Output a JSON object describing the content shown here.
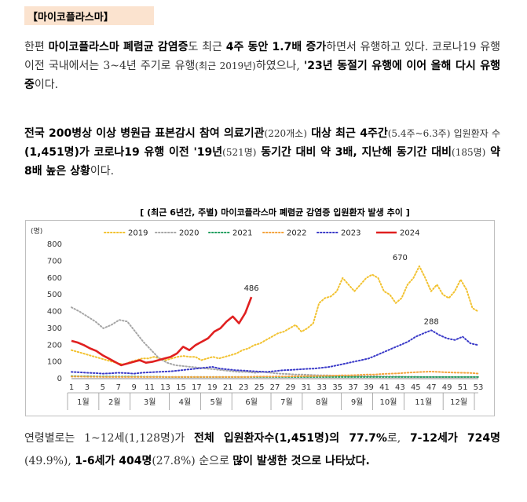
{
  "section_title": "【마이코플라스마】",
  "p1": {
    "s1": "한편 ",
    "b1": "마이코플라스마 폐렴균 감염증",
    "s2": "도 최근 ",
    "b2": "4주 동안 1.7배 증가",
    "s3": "하면서 유행하고 있다. 코로나19 유행 이전 국내에서는 3~4년 주기로 유행",
    "s4": "(최근 2019년)",
    "s5": "하였으나, ",
    "b3": "'23년 동절기 유행에 이어 올해 다시 유행 중",
    "s6": "이다."
  },
  "p2": {
    "b1": "전국 200병상 이상 병원급 표본감시 참여 의료기관",
    "s1": "(220개소)",
    "b2": " 대상 최근 4주간",
    "s2": "(5.4주~6.3주) 입원환자 수",
    "b3": "(1,451명)",
    "b4": "가 코로나19 유행 이전 '19년",
    "s3": "(521명)",
    "b5": " 동기간 대비 약 3배, 지난해 동기간 대비",
    "s4": "(185명)",
    "b6": " 약 8배 높은 상황",
    "s5": "이다."
  },
  "chart_caption": "[ (최근 6년간, 주별) 마이코플라스마 폐렴균 감염증 입원환자 발생 추이 ]",
  "p3": {
    "s1": "연령별로는 1~12세(1,128명)가 ",
    "b1": "전체 입원환자수(1,451명)의 77.7%",
    "s2": "로, ",
    "b2": "7-12세가 724명",
    "s3": "(49.9%), ",
    "b3": "1-6세가 404명",
    "s4": "(27.8%) 순으로 ",
    "b4": "많이 발생한 것으로 나타났다."
  },
  "chart_data": {
    "type": "line",
    "ylabel": "(명)",
    "ylim": [
      0,
      800
    ],
    "yticks": [
      0,
      100,
      200,
      300,
      400,
      500,
      600,
      700,
      800
    ],
    "xticks": [
      1,
      3,
      5,
      7,
      9,
      11,
      13,
      15,
      17,
      19,
      21,
      23,
      25,
      27,
      29,
      31,
      33,
      35,
      37,
      39,
      41,
      43,
      45,
      47,
      49,
      51,
      53
    ],
    "months": [
      "1월",
      "2월",
      "3월",
      "4월",
      "5월",
      "6월",
      "7월",
      "8월",
      "9월",
      "10월",
      "11월",
      "12월"
    ],
    "month_boundaries": [
      0,
      4,
      8,
      13,
      17,
      21,
      26,
      30,
      35,
      39,
      43,
      48,
      52
    ],
    "annotations": [
      {
        "label": "670",
        "x": 43,
        "y": 670
      },
      {
        "label": "288",
        "x": 47,
        "y": 288
      },
      {
        "label": "486",
        "x": 24,
        "y": 486
      }
    ],
    "series": [
      {
        "name": "2019",
        "color": "#f2c230",
        "style": "dotted",
        "values": [
          170,
          160,
          150,
          140,
          130,
          120,
          110,
          100,
          90,
          85,
          100,
          110,
          120,
          120,
          130,
          120,
          110,
          120,
          130,
          135,
          130,
          130,
          110,
          120,
          130,
          120,
          130,
          140,
          150,
          170,
          180,
          200,
          210,
          230,
          250,
          270,
          280,
          300,
          320,
          280,
          300,
          330,
          450,
          480,
          490,
          520,
          600,
          560,
          520,
          560,
          600,
          620,
          600,
          520,
          500,
          450,
          480,
          560,
          600,
          670,
          600,
          520,
          560,
          500,
          480,
          520,
          590,
          530,
          420,
          400
        ]
      },
      {
        "name": "2020",
        "color": "#a6a6a6",
        "style": "dotted",
        "values": [
          425,
          400,
          370,
          340,
          300,
          320,
          350,
          340,
          280,
          220,
          170,
          120,
          95,
          80,
          75,
          70,
          65,
          60,
          55,
          50,
          45,
          40,
          40,
          35,
          40,
          35,
          30,
          28,
          25,
          25,
          22,
          20,
          20,
          18,
          18,
          15,
          15,
          14,
          14,
          13,
          12,
          12,
          11,
          11,
          10,
          10,
          10,
          10,
          10,
          10,
          10,
          10
        ]
      },
      {
        "name": "2021",
        "color": "#1f9e5e",
        "style": "dotted",
        "values": [
          15,
          14,
          14,
          13,
          13,
          12,
          12,
          12,
          12,
          11,
          11,
          11,
          10,
          10,
          10,
          10,
          10,
          10,
          10,
          10,
          10,
          10,
          10,
          10,
          10,
          10,
          10,
          10,
          10,
          10,
          10,
          10,
          10,
          10,
          10,
          10,
          10,
          10,
          10,
          10,
          10,
          10,
          10,
          10,
          10,
          10,
          10,
          10,
          10,
          10,
          10,
          10
        ]
      },
      {
        "name": "2022",
        "color": "#f4a23a",
        "style": "dotted",
        "values": [
          12,
          12,
          11,
          11,
          10,
          10,
          10,
          10,
          10,
          10,
          10,
          10,
          10,
          10,
          10,
          10,
          10,
          10,
          10,
          10,
          10,
          10,
          10,
          12,
          12,
          12,
          13,
          13,
          14,
          15,
          15,
          16,
          17,
          18,
          20,
          20,
          22,
          25,
          25,
          28,
          30,
          32,
          35,
          38,
          40,
          42,
          40,
          38,
          36,
          35,
          34,
          30
        ]
      },
      {
        "name": "2023",
        "color": "#3a3ac8",
        "style": "dotted",
        "values": [
          40,
          38,
          35,
          33,
          30,
          32,
          35,
          33,
          30,
          35,
          38,
          40,
          42,
          45,
          50,
          55,
          60,
          65,
          70,
          60,
          55,
          50,
          48,
          45,
          42,
          40,
          45,
          50,
          52,
          55,
          58,
          60,
          65,
          70,
          80,
          90,
          100,
          110,
          120,
          140,
          160,
          180,
          200,
          220,
          250,
          270,
          288,
          260,
          240,
          230,
          250,
          210,
          200
        ]
      },
      {
        "name": "2024",
        "color": "#e02020",
        "style": "solid",
        "values": [
          225,
          215,
          200,
          180,
          165,
          140,
          120,
          100,
          80,
          90,
          100,
          110,
          95,
          100,
          110,
          120,
          130,
          150,
          190,
          170,
          200,
          220,
          240,
          280,
          300,
          340,
          370,
          330,
          390,
          486
        ]
      }
    ]
  }
}
